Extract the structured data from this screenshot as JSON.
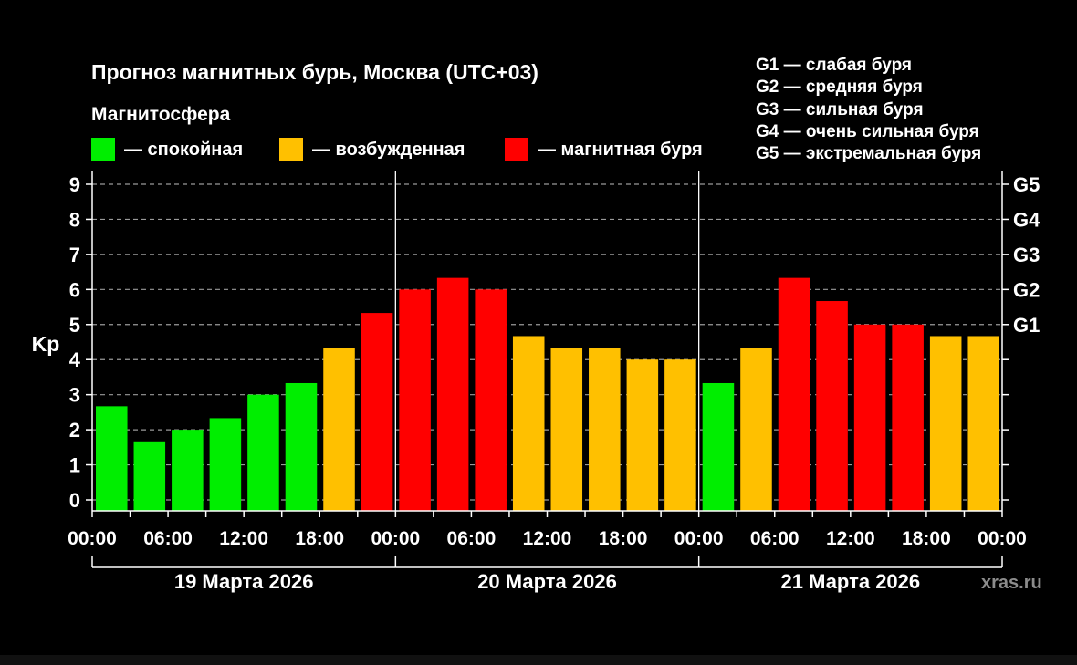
{
  "title": "Прогноз магнитных бурь, Москва (UTC+03)",
  "subtitle": "Магнитосфера",
  "legend": [
    {
      "label": "— спокойная",
      "color": "#00ee00"
    },
    {
      "label": "— возбужденная",
      "color": "#ffc000"
    },
    {
      "label": "— магнитная буря",
      "color": "#ff0000"
    }
  ],
  "storm_levels": [
    "G1 — слабая буря",
    "G2 — средняя буря",
    "G3 — сильная буря",
    "G4 — очень сильная буря",
    "G5 — экстремальная буря"
  ],
  "watermark": "xras.ru",
  "chart_data": {
    "type": "bar",
    "title": "Прогноз магнитных бурь, Москва (UTC+03)",
    "ylabel": "Kp",
    "ylim": [
      0,
      9
    ],
    "yticks": [
      "0",
      "1",
      "2",
      "3",
      "4",
      "5",
      "6",
      "7",
      "8",
      "9"
    ],
    "right_ticks": [
      {
        "value": 5,
        "label": "G1"
      },
      {
        "value": 6,
        "label": "G2"
      },
      {
        "value": 7,
        "label": "G3"
      },
      {
        "value": 8,
        "label": "G4"
      },
      {
        "value": 9,
        "label": "G5"
      }
    ],
    "xtick_labels": [
      "00:00",
      "06:00",
      "12:00",
      "18:00",
      "00:00",
      "06:00",
      "12:00",
      "18:00",
      "00:00",
      "06:00",
      "12:00",
      "18:00",
      "00:00"
    ],
    "days": [
      "19 Марта 2026",
      "20 Марта 2026",
      "21 Марта 2026"
    ],
    "interval_hours": 3,
    "values": [
      2.67,
      1.67,
      2.0,
      2.33,
      3.0,
      3.33,
      4.33,
      5.33,
      6.0,
      6.33,
      6.0,
      4.67,
      4.33,
      4.33,
      4.0,
      4.0,
      3.33,
      4.33,
      6.33,
      5.67,
      5.0,
      5.0,
      4.67,
      4.67
    ],
    "levels": [
      "quiet",
      "quiet",
      "quiet",
      "quiet",
      "quiet",
      "quiet",
      "unsettled",
      "storm",
      "storm",
      "storm",
      "storm",
      "unsettled",
      "unsettled",
      "unsettled",
      "unsettled",
      "unsettled",
      "quiet",
      "unsettled",
      "storm",
      "storm",
      "storm",
      "storm",
      "unsettled",
      "unsettled"
    ],
    "level_colors": {
      "quiet": "#00ee00",
      "unsettled": "#ffc000",
      "storm": "#ff0000"
    },
    "grid": true
  }
}
